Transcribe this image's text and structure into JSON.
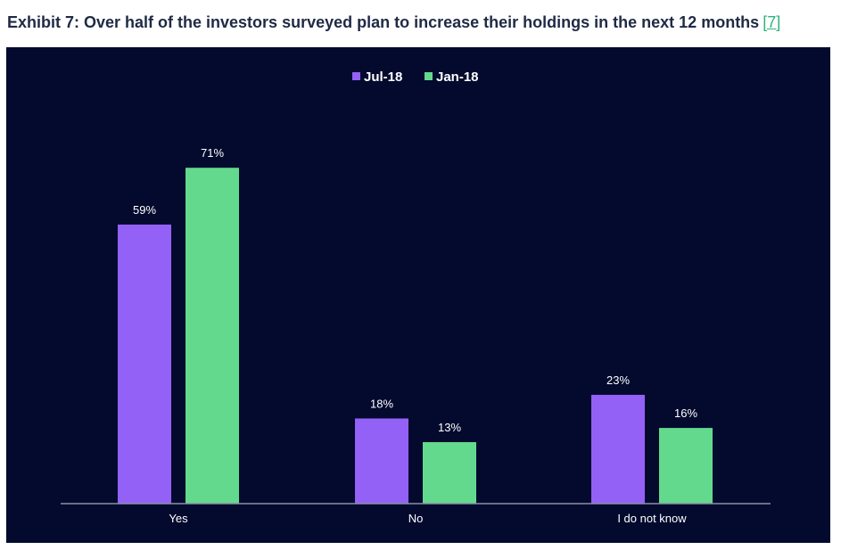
{
  "header": {
    "title": "Exhibit 7: Over half of the investors surveyed plan to increase their holdings in the next 12 months",
    "reference": "[7]"
  },
  "colors": {
    "panel_background": "#030a2e",
    "axis": "#8a90a6",
    "jul18": "#9461f7",
    "jan18": "#63d98e"
  },
  "chart_data": {
    "type": "bar",
    "categories": [
      "Yes",
      "No",
      "I do not know"
    ],
    "series": [
      {
        "name": "Jul-18",
        "values": [
          59,
          18,
          23
        ],
        "labels": [
          "59%",
          "18%",
          "23%"
        ]
      },
      {
        "name": "Jan-18",
        "values": [
          71,
          13,
          16
        ],
        "labels": [
          "71%",
          "13%",
          "16%"
        ]
      }
    ],
    "ylim": [
      0,
      75
    ],
    "legend_position": "top-center",
    "grid": false
  }
}
